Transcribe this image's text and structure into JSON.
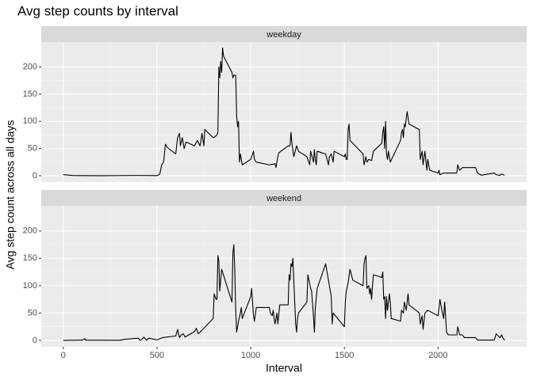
{
  "title": "Avg step counts by interval",
  "x_label": "Interval",
  "y_label": "Avg step count across all days",
  "chart_data": [
    {
      "type": "line",
      "title": "weekday",
      "color": "#000000",
      "grid": true,
      "x": [
        0,
        50,
        100,
        200,
        300,
        400,
        500,
        515,
        525,
        535,
        545,
        555,
        600,
        610,
        620,
        625,
        635,
        645,
        655,
        700,
        715,
        730,
        740,
        750,
        755,
        800,
        810,
        820,
        825,
        830,
        835,
        840,
        845,
        850,
        855,
        900,
        905,
        910,
        920,
        925,
        930,
        935,
        940,
        945,
        955,
        1000,
        1015,
        1020,
        1030,
        1100,
        1130,
        1135,
        1145,
        1150,
        1200,
        1210,
        1215,
        1220,
        1230,
        1245,
        1255,
        1300,
        1315,
        1320,
        1335,
        1340,
        1345,
        1350,
        1355,
        1400,
        1415,
        1420,
        1430,
        1440,
        1445,
        1500,
        1505,
        1510,
        1515,
        1520,
        1525,
        1530,
        1600,
        1605,
        1615,
        1620,
        1630,
        1645,
        1655,
        1700,
        1705,
        1710,
        1715,
        1720,
        1725,
        1730,
        1735,
        1745,
        1800,
        1805,
        1810,
        1815,
        1820,
        1825,
        1830,
        1835,
        1845,
        1900,
        1905,
        1915,
        1920,
        1930,
        1940,
        1945,
        1955,
        2000,
        2005,
        2010,
        2030,
        2100,
        2105,
        2115,
        2130,
        2200,
        2210,
        2230,
        2300,
        2310,
        2330,
        2335,
        2355
      ],
      "values": [
        2,
        0.4,
        0.2,
        0.1,
        0.3,
        0.5,
        0.2,
        3,
        20,
        25,
        58,
        52,
        40,
        70,
        78,
        55,
        70,
        50,
        62,
        55,
        65,
        55,
        78,
        55,
        85,
        70,
        72,
        75,
        80,
        200,
        180,
        210,
        190,
        235,
        220,
        190,
        180,
        185,
        185,
        110,
        90,
        100,
        25,
        40,
        20,
        30,
        45,
        30,
        25,
        20,
        22,
        15,
        35,
        42,
        55,
        55,
        80,
        60,
        35,
        55,
        45,
        35,
        20,
        45,
        25,
        48,
        30,
        20,
        45,
        40,
        20,
        35,
        40,
        25,
        45,
        35,
        40,
        30,
        30,
        85,
        95,
        65,
        40,
        20,
        35,
        25,
        30,
        28,
        45,
        60,
        80,
        90,
        50,
        100,
        40,
        30,
        45,
        25,
        65,
        80,
        85,
        70,
        95,
        90,
        105,
        118,
        95,
        85,
        30,
        45,
        20,
        45,
        10,
        30,
        10,
        5,
        10,
        2,
        5,
        5,
        20,
        10,
        15,
        15,
        5,
        1,
        5,
        2,
        0.5,
        3,
        1
      ],
      "xlim": [
        -117.75,
        2472.75
      ],
      "ylim": [
        -11.7,
        246
      ],
      "xticks": [
        0,
        500,
        1000,
        1500,
        2000
      ],
      "yticks": [
        0,
        50,
        100,
        150,
        200
      ]
    },
    {
      "type": "line",
      "title": "weekend",
      "color": "#000000",
      "grid": true,
      "x": [
        0,
        100,
        115,
        120,
        200,
        300,
        330,
        400,
        410,
        420,
        430,
        445,
        455,
        500,
        530,
        600,
        610,
        620,
        630,
        640,
        650,
        700,
        710,
        720,
        730,
        800,
        805,
        815,
        820,
        825,
        830,
        835,
        845,
        900,
        905,
        910,
        915,
        920,
        925,
        930,
        935,
        945,
        950,
        955,
        1000,
        1005,
        1015,
        1020,
        1030,
        1100,
        1105,
        1115,
        1120,
        1125,
        1130,
        1140,
        1145,
        1155,
        1200,
        1205,
        1210,
        1215,
        1220,
        1225,
        1230,
        1240,
        1245,
        1250,
        1255,
        1300,
        1305,
        1320,
        1325,
        1335,
        1340,
        1345,
        1355,
        1400,
        1430,
        1435,
        1440,
        1500,
        1505,
        1510,
        1520,
        1530,
        1545,
        1600,
        1605,
        1610,
        1615,
        1620,
        1630,
        1635,
        1640,
        1645,
        1650,
        1655,
        1700,
        1705,
        1710,
        1715,
        1720,
        1725,
        1730,
        1740,
        1745,
        1750,
        1800,
        1805,
        1815,
        1820,
        1830,
        1840,
        1845,
        1900,
        1905,
        1915,
        1920,
        1930,
        1945,
        2000,
        2010,
        2020,
        2030,
        2035,
        2040,
        2045,
        2055,
        2100,
        2105,
        2115,
        2130,
        2140,
        2200,
        2210,
        2300,
        2310,
        2330,
        2340,
        2345,
        2355
      ],
      "values": [
        0,
        0.5,
        3,
        0.3,
        0.3,
        0.2,
        2,
        4,
        0,
        2,
        6,
        0,
        4,
        1,
        5,
        8,
        20,
        5,
        10,
        12,
        6,
        16,
        22,
        12,
        15,
        40,
        85,
        75,
        75,
        155,
        145,
        90,
        130,
        70,
        160,
        175,
        130,
        55,
        15,
        25,
        35,
        50,
        60,
        40,
        80,
        95,
        45,
        35,
        60,
        60,
        50,
        45,
        55,
        40,
        30,
        50,
        30,
        65,
        65,
        120,
        110,
        140,
        135,
        150,
        110,
        30,
        15,
        40,
        50,
        70,
        120,
        95,
        90,
        45,
        15,
        60,
        95,
        140,
        80,
        30,
        50,
        25,
        70,
        90,
        105,
        130,
        110,
        100,
        140,
        150,
        155,
        95,
        100,
        85,
        95,
        75,
        100,
        120,
        115,
        125,
        75,
        80,
        40,
        80,
        55,
        85,
        70,
        40,
        35,
        55,
        50,
        70,
        55,
        85,
        65,
        50,
        30,
        45,
        20,
        50,
        55,
        45,
        75,
        55,
        40,
        70,
        45,
        15,
        10,
        10,
        25,
        10,
        10,
        5,
        5,
        0.5,
        0.5,
        12,
        5,
        10,
        5,
        0
      ],
      "xlim": [
        -117.75,
        2472.75
      ],
      "ylim": [
        -11.7,
        246
      ],
      "xticks": [
        0,
        500,
        1000,
        1500,
        2000
      ],
      "yticks": [
        0,
        50,
        100,
        150,
        200
      ]
    }
  ]
}
